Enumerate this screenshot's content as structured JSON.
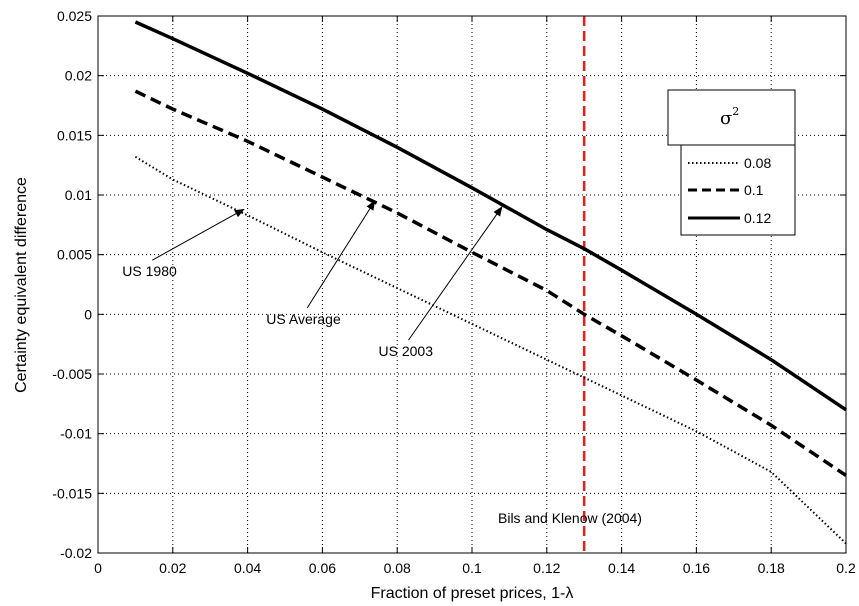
{
  "chart_data": {
    "type": "line",
    "title": "",
    "xlabel": "Fraction of preset prices, 1-λ",
    "ylabel": "Certainty equivalent difference",
    "xlim": [
      0,
      0.2
    ],
    "ylim": [
      -0.02,
      0.025
    ],
    "xticks": [
      0,
      0.02,
      0.04,
      0.06,
      0.08,
      0.1,
      0.12,
      0.14,
      0.16,
      0.18,
      0.2
    ],
    "xtick_labels": [
      "0",
      "0.02",
      "0.04",
      "0.06",
      "0.08",
      "0.1",
      "0.12",
      "0.14",
      "0.16",
      "0.18",
      "0.2"
    ],
    "yticks": [
      -0.02,
      -0.015,
      -0.01,
      -0.005,
      0,
      0.005,
      0.01,
      0.015,
      0.02,
      0.025
    ],
    "ytick_labels": [
      "-0.02",
      "-0.015",
      "-0.01",
      "-0.005",
      "0",
      "0.005",
      "0.01",
      "0.015",
      "0.02",
      "0.025"
    ],
    "grid": true,
    "legend": {
      "title": "σ",
      "title_sup": "2",
      "position": "top-right",
      "entries": [
        "0.08",
        "0.1",
        "0.12"
      ]
    },
    "series": [
      {
        "name": "0.08",
        "style": "dotted",
        "color": "#000000",
        "x": [
          0.01,
          0.02,
          0.04,
          0.06,
          0.08,
          0.1,
          0.12,
          0.13,
          0.14,
          0.16,
          0.18,
          0.2
        ],
        "y": [
          0.0132,
          0.0113,
          0.0083,
          0.0052,
          0.0022,
          -0.0008,
          -0.0038,
          -0.0053,
          -0.0068,
          -0.0098,
          -0.0132,
          -0.0192
        ]
      },
      {
        "name": "0.1",
        "style": "dashed",
        "color": "#000000",
        "x": [
          0.01,
          0.02,
          0.04,
          0.06,
          0.08,
          0.1,
          0.12,
          0.13,
          0.14,
          0.16,
          0.18,
          0.2
        ],
        "y": [
          0.0187,
          0.0172,
          0.0145,
          0.0115,
          0.0085,
          0.0052,
          0.002,
          0.0,
          -0.0018,
          -0.0055,
          -0.0093,
          -0.0135
        ]
      },
      {
        "name": "0.12",
        "style": "solid",
        "color": "#000000",
        "x": [
          0.01,
          0.02,
          0.04,
          0.06,
          0.08,
          0.1,
          0.12,
          0.13,
          0.14,
          0.16,
          0.18,
          0.2
        ],
        "y": [
          0.0245,
          0.0231,
          0.0202,
          0.0172,
          0.014,
          0.0106,
          0.0071,
          0.0055,
          0.0037,
          0.0,
          -0.0038,
          -0.008
        ]
      }
    ],
    "vline": {
      "x": 0.13,
      "color": "#e32020",
      "style": "dashed",
      "label": "Bils and Klenow (2004)"
    },
    "annotations": [
      {
        "text": "US 1980",
        "text_x": 0.0065,
        "text_y": 0.0032,
        "arrow_x": 0.039,
        "arrow_y": 0.0088
      },
      {
        "text": "US Average",
        "text_x": 0.045,
        "text_y": -0.0008,
        "arrow_x": 0.074,
        "arrow_y": 0.0095
      },
      {
        "text": "US 2003",
        "text_x": 0.075,
        "text_y": -0.0035,
        "arrow_x": 0.108,
        "arrow_y": 0.009
      }
    ]
  }
}
